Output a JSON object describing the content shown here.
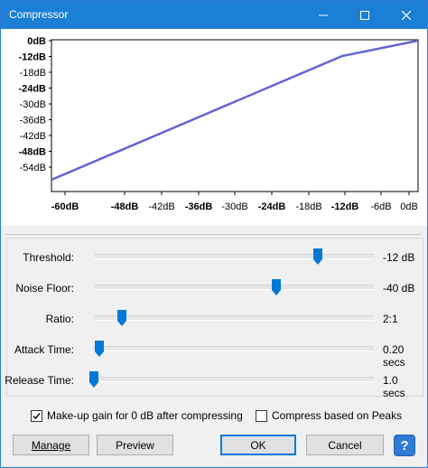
{
  "window": {
    "title": "Compressor"
  },
  "graph": {
    "y_labels": [
      {
        "text": "0dB",
        "bold": true
      },
      {
        "text": "-12dB",
        "bold": true
      },
      {
        "text": "-18dB",
        "bold": false
      },
      {
        "text": "-24dB",
        "bold": true
      },
      {
        "text": "-30dB",
        "bold": false
      },
      {
        "text": "-36dB",
        "bold": false
      },
      {
        "text": "-42dB",
        "bold": false
      },
      {
        "text": "-48dB",
        "bold": true
      },
      {
        "text": "-54dB",
        "bold": false
      }
    ],
    "x_labels": [
      {
        "text": "-60dB",
        "bold": true
      },
      {
        "text": "-48dB",
        "bold": true
      },
      {
        "text": "-42dB",
        "bold": false
      },
      {
        "text": "-36dB",
        "bold": true
      },
      {
        "text": "-30dB",
        "bold": false
      },
      {
        "text": "-24dB",
        "bold": true
      },
      {
        "text": "-18dB",
        "bold": false
      },
      {
        "text": "-12dB",
        "bold": true
      },
      {
        "text": "-6dB",
        "bold": false
      },
      {
        "text": "0dB",
        "bold": false
      }
    ],
    "line_color": "#6464d8"
  },
  "settings": {
    "threshold": {
      "label": "Threshold:",
      "value": "-12 dB",
      "level": 0.8
    },
    "noise_floor": {
      "label": "Noise Floor:",
      "value": "-40 dB",
      "level": 0.65
    },
    "ratio": {
      "label": "Ratio:",
      "value": "2:1",
      "level": 0.1
    },
    "attack_time": {
      "label": "Attack Time:",
      "value": "0.20 secs",
      "level": 0.02
    },
    "release_time": {
      "label": "Release Time:",
      "value": "1.0 secs",
      "level": 0.0
    }
  },
  "checks": {
    "makeup_gain": {
      "label": "Make-up gain for 0 dB after compressing",
      "checked": true
    },
    "compress_peaks": {
      "label": "Compress based on Peaks",
      "checked": false
    }
  },
  "buttons": {
    "manage": "Manage",
    "preview": "Preview",
    "ok": "OK",
    "cancel": "Cancel",
    "help": "?"
  },
  "accent_color": "#1b7fd6"
}
